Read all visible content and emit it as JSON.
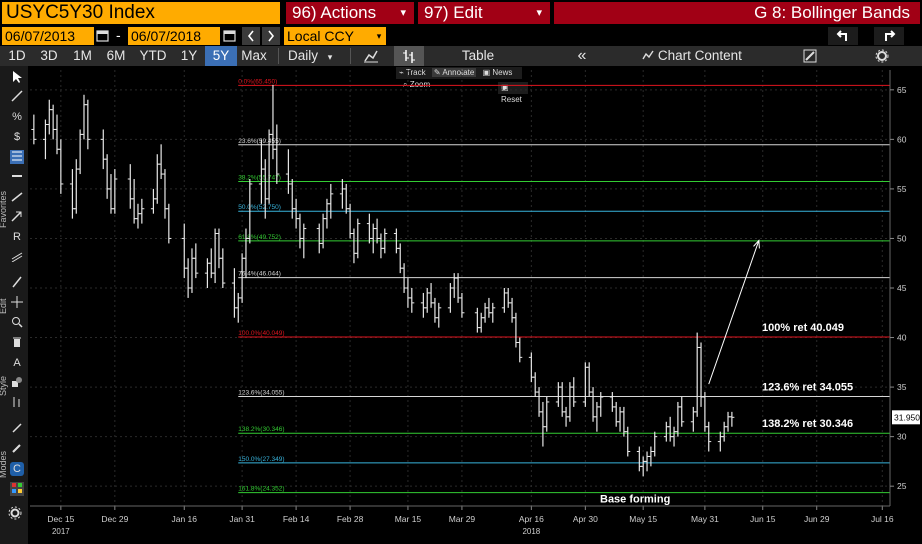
{
  "header": {
    "ticker": "USYC5Y30 Index",
    "actions_label": "96) Actions",
    "edit_label": "97) Edit",
    "dropdown_glyph": "▾",
    "tab_title": "G 8: Bollinger Bands"
  },
  "range": {
    "start_date": "06/07/2013",
    "dash": "-",
    "end_date": "06/07/2018",
    "currency": "Local CCY"
  },
  "periods": [
    "1D",
    "3D",
    "1M",
    "6M",
    "YTD",
    "1Y",
    "5Y",
    "Max"
  ],
  "active_period": "5Y",
  "toolbar": {
    "frequency": "Daily",
    "table_label": "Table",
    "chart_content_label": "Chart Content",
    "collapse_glyph": "«"
  },
  "chart_tools": [
    "Track",
    "Annotate",
    "News",
    "Zoom"
  ],
  "reset_label": "Reset",
  "side_labels": [
    "Favorites",
    "Edit",
    "Style",
    "Modes"
  ],
  "colors": {
    "ticker_bg": "#ffab00",
    "action_bg": "#a10015",
    "active_tab": "#3b6fb5",
    "red_level": "#e0141e",
    "green_level": "#33cc33",
    "cyan_level": "#38b4dc",
    "white_level": "#d6d6d6",
    "price_bars": "#e8e8e8"
  },
  "chart_data": {
    "type": "bar",
    "series_kind": "OHLC price bars (daily)",
    "y_axis": {
      "ylim": [
        23,
        67
      ],
      "ticks": [
        25,
        30,
        35,
        40,
        45,
        50,
        55,
        60,
        65
      ],
      "side": "right"
    },
    "x_axis": {
      "ticks": [
        "Dec 15",
        "Dec 29",
        "Jan 16",
        "Jan 31",
        "Feb 14",
        "Feb 28",
        "Mar 15",
        "Mar 29",
        "Apr 16",
        "Apr 30",
        "May 15",
        "May 31",
        "Jun 15",
        "Jun 29",
        "Jul 16"
      ],
      "years": [
        {
          "label": "2017",
          "under": "Dec 15"
        },
        {
          "label": "2018",
          "under": "Apr 16"
        }
      ],
      "range": [
        "2017-12-07",
        "2018-07-18"
      ]
    },
    "last_price": {
      "label": "31.950",
      "value": 31.95
    },
    "fib_levels": [
      {
        "label": "0.0%(65.450)",
        "value": 65.45,
        "color": "red"
      },
      {
        "label": "23.6%(59.455)",
        "value": 59.455,
        "color": "white"
      },
      {
        "label": "38.2%(55.747)",
        "value": 55.747,
        "color": "green"
      },
      {
        "label": "50.0%(52.750)",
        "value": 52.75,
        "color": "cyan"
      },
      {
        "label": "61.8%(49.752)",
        "value": 49.752,
        "color": "green"
      },
      {
        "label": "76.4%(46.044)",
        "value": 46.044,
        "color": "white"
      },
      {
        "label": "100.0%(40.049)",
        "value": 40.049,
        "color": "red"
      },
      {
        "label": "123.6%(34.055)",
        "value": 34.055,
        "color": "white"
      },
      {
        "label": "138.2%(30.346)",
        "value": 30.346,
        "color": "green"
      },
      {
        "label": "150.0%(27.349)",
        "value": 27.349,
        "color": "cyan"
      },
      {
        "label": "161.8%(24.352)",
        "value": 24.352,
        "color": "green"
      }
    ],
    "annotations": [
      {
        "text": "100% ret 40.049",
        "near": 40.049
      },
      {
        "text": "123.6% ret 34.055",
        "near": 34.055
      },
      {
        "text": "138.2% ret 30.346",
        "near": 30.346
      },
      {
        "text": "Base forming",
        "near": 24.352
      }
    ],
    "arrow": {
      "from": [
        "2018-06-01",
        35.3
      ],
      "to": [
        "2018-06-14",
        49.8
      ]
    },
    "bars": [
      {
        "date": "2017-12-08",
        "o": 61,
        "h": 62.5,
        "l": 59.5,
        "c": 60
      },
      {
        "date": "2017-12-11",
        "o": 60,
        "h": 62,
        "l": 58,
        "c": 61.5
      },
      {
        "date": "2017-12-12",
        "o": 61.5,
        "h": 64,
        "l": 60.5,
        "c": 63
      },
      {
        "date": "2017-12-13",
        "o": 63,
        "h": 63.5,
        "l": 60,
        "c": 61
      },
      {
        "date": "2017-12-14",
        "o": 61,
        "h": 62.5,
        "l": 58.5,
        "c": 59
      },
      {
        "date": "2017-12-15",
        "o": 59,
        "h": 60,
        "l": 54.5,
        "c": 55.5
      },
      {
        "date": "2017-12-18",
        "o": 55.5,
        "h": 57,
        "l": 52,
        "c": 53
      },
      {
        "date": "2017-12-19",
        "o": 53,
        "h": 58,
        "l": 52.5,
        "c": 57
      },
      {
        "date": "2017-12-20",
        "o": 57,
        "h": 61,
        "l": 56.5,
        "c": 60.5
      },
      {
        "date": "2017-12-21",
        "o": 60.5,
        "h": 64.5,
        "l": 60,
        "c": 63.5
      },
      {
        "date": "2017-12-22",
        "o": 63.5,
        "h": 64,
        "l": 59,
        "c": 60
      },
      {
        "date": "2017-12-26",
        "o": 60,
        "h": 61,
        "l": 57,
        "c": 58
      },
      {
        "date": "2017-12-27",
        "o": 58,
        "h": 58.5,
        "l": 54,
        "c": 55
      },
      {
        "date": "2017-12-28",
        "o": 55,
        "h": 56.5,
        "l": 52.5,
        "c": 53
      },
      {
        "date": "2017-12-29",
        "o": 53,
        "h": 57,
        "l": 52.5,
        "c": 56
      },
      {
        "date": "2018-01-02",
        "o": 56,
        "h": 57.5,
        "l": 53,
        "c": 54
      },
      {
        "date": "2018-01-03",
        "o": 54,
        "h": 56,
        "l": 51.5,
        "c": 52
      },
      {
        "date": "2018-01-04",
        "o": 52,
        "h": 53.5,
        "l": 51,
        "c": 52.5
      },
      {
        "date": "2018-01-05",
        "o": 52.5,
        "h": 54,
        "l": 51.5,
        "c": 53
      },
      {
        "date": "2018-01-08",
        "o": 53,
        "h": 55,
        "l": 52.5,
        "c": 54
      },
      {
        "date": "2018-01-09",
        "o": 54,
        "h": 58.5,
        "l": 53.5,
        "c": 57.5
      },
      {
        "date": "2018-01-10",
        "o": 57.5,
        "h": 59.5,
        "l": 56,
        "c": 56.5
      },
      {
        "date": "2018-01-11",
        "o": 56.5,
        "h": 57,
        "l": 52,
        "c": 53
      },
      {
        "date": "2018-01-12",
        "o": 53,
        "h": 53.5,
        "l": 49.5,
        "c": 50
      },
      {
        "date": "2018-01-16",
        "o": 50,
        "h": 51.5,
        "l": 46,
        "c": 47
      },
      {
        "date": "2018-01-17",
        "o": 47,
        "h": 48,
        "l": 44,
        "c": 45
      },
      {
        "date": "2018-01-18",
        "o": 45,
        "h": 49,
        "l": 44.5,
        "c": 48
      },
      {
        "date": "2018-01-19",
        "o": 48,
        "h": 49.5,
        "l": 46,
        "c": 46.5
      },
      {
        "date": "2018-01-22",
        "o": 46.5,
        "h": 48,
        "l": 45,
        "c": 47.5
      },
      {
        "date": "2018-01-23",
        "o": 47.5,
        "h": 49,
        "l": 46,
        "c": 46.5
      },
      {
        "date": "2018-01-24",
        "o": 46.5,
        "h": 51,
        "l": 45.5,
        "c": 50.5
      },
      {
        "date": "2018-01-25",
        "o": 50.5,
        "h": 51,
        "l": 47,
        "c": 48
      },
      {
        "date": "2018-01-26",
        "o": 48,
        "h": 49,
        "l": 45,
        "c": 45.5
      },
      {
        "date": "2018-01-29",
        "o": 45.5,
        "h": 47,
        "l": 42,
        "c": 43
      },
      {
        "date": "2018-01-30",
        "o": 43,
        "h": 44.5,
        "l": 41.5,
        "c": 44
      },
      {
        "date": "2018-01-31",
        "o": 44,
        "h": 48.5,
        "l": 43.5,
        "c": 48
      },
      {
        "date": "2018-02-01",
        "o": 48,
        "h": 51,
        "l": 46,
        "c": 50
      },
      {
        "date": "2018-02-02",
        "o": 50,
        "h": 56,
        "l": 49.5,
        "c": 55.5
      },
      {
        "date": "2018-02-05",
        "o": 55.5,
        "h": 60,
        "l": 53.5,
        "c": 57
      },
      {
        "date": "2018-02-06",
        "o": 57,
        "h": 58,
        "l": 52,
        "c": 54
      },
      {
        "date": "2018-02-07",
        "o": 54,
        "h": 61,
        "l": 53.5,
        "c": 60.5
      },
      {
        "date": "2018-02-08",
        "o": 60.5,
        "h": 65.5,
        "l": 58,
        "c": 59
      },
      {
        "date": "2018-02-09",
        "o": 59,
        "h": 61.5,
        "l": 55.5,
        "c": 56.5
      },
      {
        "date": "2018-02-12",
        "o": 56.5,
        "h": 59,
        "l": 54.5,
        "c": 55.5
      },
      {
        "date": "2018-02-13",
        "o": 55.5,
        "h": 56,
        "l": 52,
        "c": 53
      },
      {
        "date": "2018-02-14",
        "o": 53,
        "h": 54,
        "l": 51,
        "c": 52
      },
      {
        "date": "2018-02-15",
        "o": 52,
        "h": 52.5,
        "l": 49,
        "c": 50
      },
      {
        "date": "2018-02-16",
        "o": 50,
        "h": 51.5,
        "l": 48,
        "c": 51
      },
      {
        "date": "2018-02-20",
        "o": 51,
        "h": 51.5,
        "l": 48.5,
        "c": 49.5
      },
      {
        "date": "2018-02-21",
        "o": 49.5,
        "h": 52.5,
        "l": 49,
        "c": 52
      },
      {
        "date": "2018-02-22",
        "o": 52,
        "h": 54,
        "l": 51,
        "c": 53.5
      },
      {
        "date": "2018-02-23",
        "o": 53.5,
        "h": 55.5,
        "l": 52,
        "c": 54.5
      },
      {
        "date": "2018-02-26",
        "o": 54.5,
        "h": 56,
        "l": 53,
        "c": 55
      },
      {
        "date": "2018-02-27",
        "o": 55,
        "h": 55.5,
        "l": 52.5,
        "c": 53
      },
      {
        "date": "2018-02-28",
        "o": 53,
        "h": 53.5,
        "l": 50,
        "c": 50.5
      },
      {
        "date": "2018-03-01",
        "o": 50.5,
        "h": 51,
        "l": 47.5,
        "c": 48.5
      },
      {
        "date": "2018-03-02",
        "o": 48.5,
        "h": 52,
        "l": 48,
        "c": 51.5
      },
      {
        "date": "2018-03-05",
        "o": 51.5,
        "h": 52.5,
        "l": 49.5,
        "c": 50
      },
      {
        "date": "2018-03-06",
        "o": 50,
        "h": 51.5,
        "l": 48.5,
        "c": 51
      },
      {
        "date": "2018-03-07",
        "o": 51,
        "h": 52,
        "l": 49.5,
        "c": 50
      },
      {
        "date": "2018-03-08",
        "o": 50,
        "h": 50.5,
        "l": 48,
        "c": 49
      },
      {
        "date": "2018-03-09",
        "o": 49,
        "h": 51,
        "l": 48.5,
        "c": 50.5
      },
      {
        "date": "2018-03-12",
        "o": 50.5,
        "h": 51,
        "l": 48.5,
        "c": 49
      },
      {
        "date": "2018-03-13",
        "o": 49,
        "h": 49.5,
        "l": 46.5,
        "c": 47
      },
      {
        "date": "2018-03-14",
        "o": 47,
        "h": 47.5,
        "l": 44.5,
        "c": 45
      },
      {
        "date": "2018-03-15",
        "o": 45,
        "h": 46,
        "l": 43,
        "c": 44
      },
      {
        "date": "2018-03-16",
        "o": 44,
        "h": 45,
        "l": 42.5,
        "c": 43.5
      },
      {
        "date": "2018-03-19",
        "o": 43.5,
        "h": 44.5,
        "l": 42,
        "c": 43
      },
      {
        "date": "2018-03-20",
        "o": 43,
        "h": 45,
        "l": 42.5,
        "c": 44.5
      },
      {
        "date": "2018-03-21",
        "o": 44.5,
        "h": 45.5,
        "l": 43,
        "c": 43.5
      },
      {
        "date": "2018-03-22",
        "o": 43.5,
        "h": 44,
        "l": 41.5,
        "c": 42
      },
      {
        "date": "2018-03-23",
        "o": 42,
        "h": 43.5,
        "l": 41,
        "c": 43
      },
      {
        "date": "2018-03-26",
        "o": 43,
        "h": 45.5,
        "l": 42.5,
        "c": 45
      },
      {
        "date": "2018-03-27",
        "o": 45,
        "h": 46.5,
        "l": 44,
        "c": 46
      },
      {
        "date": "2018-03-28",
        "o": 46,
        "h": 46.5,
        "l": 43.5,
        "c": 44
      },
      {
        "date": "2018-03-29",
        "o": 44,
        "h": 44.5,
        "l": 42,
        "c": 42.5
      },
      {
        "date": "2018-04-02",
        "o": 42.5,
        "h": 43,
        "l": 40.5,
        "c": 41
      },
      {
        "date": "2018-04-03",
        "o": 41,
        "h": 42.5,
        "l": 40.5,
        "c": 42
      },
      {
        "date": "2018-04-04",
        "o": 42,
        "h": 43.5,
        "l": 41.5,
        "c": 43
      },
      {
        "date": "2018-04-05",
        "o": 43,
        "h": 44,
        "l": 42,
        "c": 42.5
      },
      {
        "date": "2018-04-06",
        "o": 42.5,
        "h": 43.5,
        "l": 41.5,
        "c": 43
      },
      {
        "date": "2018-04-09",
        "o": 43,
        "h": 45,
        "l": 42.5,
        "c": 44.5
      },
      {
        "date": "2018-04-10",
        "o": 44.5,
        "h": 45,
        "l": 43,
        "c": 43.5
      },
      {
        "date": "2018-04-11",
        "o": 43.5,
        "h": 44,
        "l": 41.5,
        "c": 42
      },
      {
        "date": "2018-04-12",
        "o": 42,
        "h": 42.5,
        "l": 39,
        "c": 39.5
      },
      {
        "date": "2018-04-13",
        "o": 39.5,
        "h": 40,
        "l": 37.5,
        "c": 38
      },
      {
        "date": "2018-04-16",
        "o": 38,
        "h": 38.5,
        "l": 35.5,
        "c": 36
      },
      {
        "date": "2018-04-17",
        "o": 36,
        "h": 36.5,
        "l": 34,
        "c": 34.5
      },
      {
        "date": "2018-04-18",
        "o": 34.5,
        "h": 35,
        "l": 32,
        "c": 32.5
      },
      {
        "date": "2018-04-19",
        "o": 32.5,
        "h": 33.5,
        "l": 29,
        "c": 31
      },
      {
        "date": "2018-04-20",
        "o": 31,
        "h": 34,
        "l": 30.5,
        "c": 33.5
      },
      {
        "date": "2018-04-23",
        "o": 33.5,
        "h": 35.5,
        "l": 33,
        "c": 35
      },
      {
        "date": "2018-04-24",
        "o": 35,
        "h": 35.5,
        "l": 32,
        "c": 32.5
      },
      {
        "date": "2018-04-25",
        "o": 32.5,
        "h": 33,
        "l": 31,
        "c": 32
      },
      {
        "date": "2018-04-26",
        "o": 32,
        "h": 35.5,
        "l": 31.5,
        "c": 35
      },
      {
        "date": "2018-04-27",
        "o": 35,
        "h": 36,
        "l": 33,
        "c": 33.5
      },
      {
        "date": "2018-04-30",
        "o": 33.5,
        "h": 37.5,
        "l": 33,
        "c": 37
      },
      {
        "date": "2018-05-01",
        "o": 37,
        "h": 37.5,
        "l": 34,
        "c": 34.5
      },
      {
        "date": "2018-05-02",
        "o": 34.5,
        "h": 35,
        "l": 31.5,
        "c": 32
      },
      {
        "date": "2018-05-03",
        "o": 32,
        "h": 33.5,
        "l": 30.5,
        "c": 33
      },
      {
        "date": "2018-05-04",
        "o": 33,
        "h": 34.5,
        "l": 32,
        "c": 34
      },
      {
        "date": "2018-05-07",
        "o": 34,
        "h": 34.5,
        "l": 32.5,
        "c": 33
      },
      {
        "date": "2018-05-08",
        "o": 33,
        "h": 33.5,
        "l": 31,
        "c": 31.5
      },
      {
        "date": "2018-05-09",
        "o": 31.5,
        "h": 33,
        "l": 30.5,
        "c": 32.5
      },
      {
        "date": "2018-05-10",
        "o": 32.5,
        "h": 33,
        "l": 30,
        "c": 30.5
      },
      {
        "date": "2018-05-11",
        "o": 30.5,
        "h": 31,
        "l": 28,
        "c": 28.5
      },
      {
        "date": "2018-05-14",
        "o": 28.5,
        "h": 29,
        "l": 26.5,
        "c": 27
      },
      {
        "date": "2018-05-15",
        "o": 27,
        "h": 28,
        "l": 26,
        "c": 27.5
      },
      {
        "date": "2018-05-16",
        "o": 27.5,
        "h": 28.5,
        "l": 26.5,
        "c": 28
      },
      {
        "date": "2018-05-17",
        "o": 28,
        "h": 29,
        "l": 27,
        "c": 28.5
      },
      {
        "date": "2018-05-18",
        "o": 28.5,
        "h": 30.5,
        "l": 28,
        "c": 30
      },
      {
        "date": "2018-05-21",
        "o": 30,
        "h": 31.5,
        "l": 29.5,
        "c": 31
      },
      {
        "date": "2018-05-22",
        "o": 31,
        "h": 32,
        "l": 29.5,
        "c": 30
      },
      {
        "date": "2018-05-23",
        "o": 30,
        "h": 31,
        "l": 29,
        "c": 30.5
      },
      {
        "date": "2018-05-24",
        "o": 30.5,
        "h": 33.5,
        "l": 30,
        "c": 33
      },
      {
        "date": "2018-05-25",
        "o": 33,
        "h": 34,
        "l": 31,
        "c": 31.5
      },
      {
        "date": "2018-05-28",
        "o": 31.5,
        "h": 33,
        "l": 30.5,
        "c": 32.5
      },
      {
        "date": "2018-05-29",
        "o": 32.5,
        "h": 40.5,
        "l": 32,
        "c": 39
      },
      {
        "date": "2018-05-30",
        "o": 39,
        "h": 39.5,
        "l": 33,
        "c": 34
      },
      {
        "date": "2018-05-31",
        "o": 34,
        "h": 34.5,
        "l": 30.5,
        "c": 31
      },
      {
        "date": "2018-06-01",
        "o": 31,
        "h": 31.5,
        "l": 28.5,
        "c": 29.5
      },
      {
        "date": "2018-06-04",
        "o": 29.5,
        "h": 30.5,
        "l": 28.5,
        "c": 30
      },
      {
        "date": "2018-06-05",
        "o": 30,
        "h": 31.5,
        "l": 29.5,
        "c": 31
      },
      {
        "date": "2018-06-06",
        "o": 31,
        "h": 32.5,
        "l": 30.5,
        "c": 32
      },
      {
        "date": "2018-06-07",
        "o": 32,
        "h": 32.5,
        "l": 31,
        "c": 31.95
      }
    ]
  }
}
